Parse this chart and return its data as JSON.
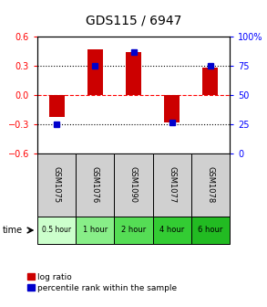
{
  "title": "GDS115 / 6947",
  "samples": [
    "GSM1075",
    "GSM1076",
    "GSM1090",
    "GSM1077",
    "GSM1078"
  ],
  "time_labels": [
    "0.5 hour",
    "1 hour",
    "2 hour",
    "4 hour",
    "6 hour"
  ],
  "log_ratios": [
    -0.22,
    0.47,
    0.44,
    -0.28,
    0.28
  ],
  "percentile_ranks": [
    25,
    75,
    87,
    27,
    75
  ],
  "ylim_left": [
    -0.6,
    0.6
  ],
  "ylim_right": [
    0,
    100
  ],
  "yticks_left": [
    -0.6,
    -0.3,
    0,
    0.3,
    0.6
  ],
  "yticks_right": [
    0,
    25,
    50,
    75,
    100
  ],
  "bar_color": "#cc0000",
  "percentile_color": "#0000cc",
  "bar_width": 0.4,
  "percentile_marker_size": 5,
  "title_fontsize": 10,
  "tick_fontsize": 7,
  "time_colors": [
    "#ccffcc",
    "#88ee88",
    "#55dd55",
    "#33cc33",
    "#22bb22"
  ],
  "sample_bg_color": "#d0d0d0",
  "background_color": "#ffffff"
}
